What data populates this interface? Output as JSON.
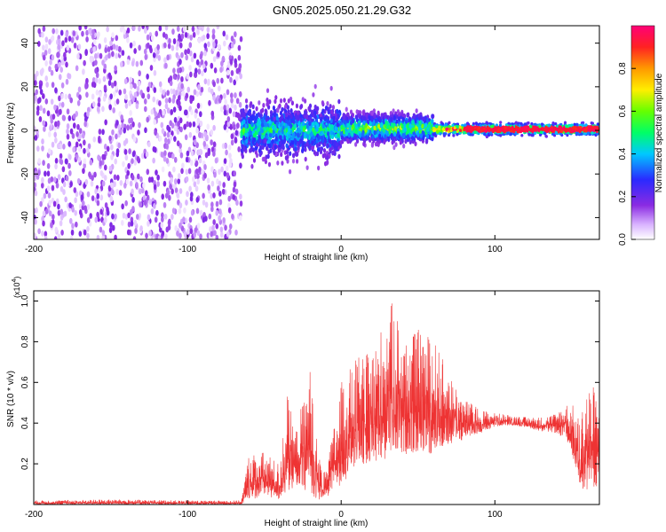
{
  "title": "GN05.2025.050.21.29.G32",
  "colors": {
    "snr_line": "#ee3333",
    "colormap": [
      "#ffffff",
      "#e6ccff",
      "#b07cff",
      "#7a00ff",
      "#2a2aff",
      "#00c8ff",
      "#00ff66",
      "#ccff00",
      "#ffcc00",
      "#ff2222",
      "#ff0077"
    ]
  },
  "chart_data": [
    {
      "type": "heatmap",
      "title": "",
      "xlabel": "Height of straight line (km)",
      "ylabel": "Frequency (Hz)",
      "xlim": [
        -200,
        168
      ],
      "ylim": [
        -50,
        48
      ],
      "xticks": [
        -200,
        -100,
        0,
        100
      ],
      "yticks": [
        -40,
        -20,
        0,
        20,
        40
      ],
      "grid": false,
      "colorbar": {
        "label": "Normalized spectral amplitude",
        "range": [
          0,
          1
        ],
        "ticks": [
          "0.0",
          "0.2",
          "0.4",
          "0.6",
          "0.8"
        ]
      },
      "segments": [
        {
          "name": "noise_region",
          "x_range": [
            -200,
            -65
          ],
          "freq_range": [
            -50,
            48
          ],
          "amplitude_range": [
            0.02,
            0.18
          ]
        },
        {
          "name": "onset_region",
          "x_range": [
            -65,
            0
          ],
          "center_freq": 0,
          "freq_spread": 14,
          "peak_amplitude": 0.45
        },
        {
          "name": "transition_region",
          "x_range": [
            0,
            60
          ],
          "center_freq": 1,
          "freq_spread": 8,
          "peak_amplitude": 0.6
        },
        {
          "name": "tonal_region",
          "x_range": [
            60,
            168
          ],
          "center_freq": 0.5,
          "freq_spread": 3,
          "peak_amplitude": 1.0
        }
      ]
    },
    {
      "type": "line",
      "title": "",
      "xlabel": "Height of straight line (km)",
      "ylabel": "SNR (10 * v/v)",
      "y_multiplier": "(x10",
      "y_multiplier_exp": "4",
      "y_multiplier_close": ")",
      "xlim": [
        -200,
        168
      ],
      "ylim": [
        0,
        1.05
      ],
      "xticks": [
        -200,
        -100,
        0,
        100
      ],
      "yticks": [
        0.2,
        0.4,
        0.6,
        0.8,
        1.0
      ],
      "grid": false,
      "envelope": {
        "x": [
          -200,
          -150,
          -100,
          -65,
          -60,
          -50,
          -40,
          -35,
          -30,
          -20,
          -15,
          -10,
          0,
          10,
          20,
          30,
          35,
          40,
          50,
          60,
          70,
          80,
          90,
          100,
          110,
          120,
          130,
          140,
          145,
          150,
          155,
          160,
          165,
          168
        ],
        "upper": [
          0.02,
          0.025,
          0.02,
          0.02,
          0.25,
          0.26,
          0.2,
          0.55,
          0.35,
          0.68,
          0.25,
          0.15,
          0.6,
          0.72,
          0.75,
          0.95,
          1.02,
          0.8,
          0.86,
          0.82,
          0.65,
          0.52,
          0.47,
          0.45,
          0.44,
          0.43,
          0.43,
          0.45,
          0.5,
          0.5,
          0.42,
          0.6,
          0.58,
          0.45
        ],
        "lower": [
          0.0,
          0.0,
          0.0,
          0.0,
          0.02,
          0.04,
          0.02,
          0.06,
          0.08,
          0.05,
          0.02,
          0.03,
          0.1,
          0.18,
          0.2,
          0.22,
          0.22,
          0.25,
          0.24,
          0.25,
          0.28,
          0.32,
          0.35,
          0.38,
          0.39,
          0.38,
          0.36,
          0.35,
          0.32,
          0.25,
          0.1,
          0.05,
          0.08,
          0.1
        ]
      }
    }
  ]
}
